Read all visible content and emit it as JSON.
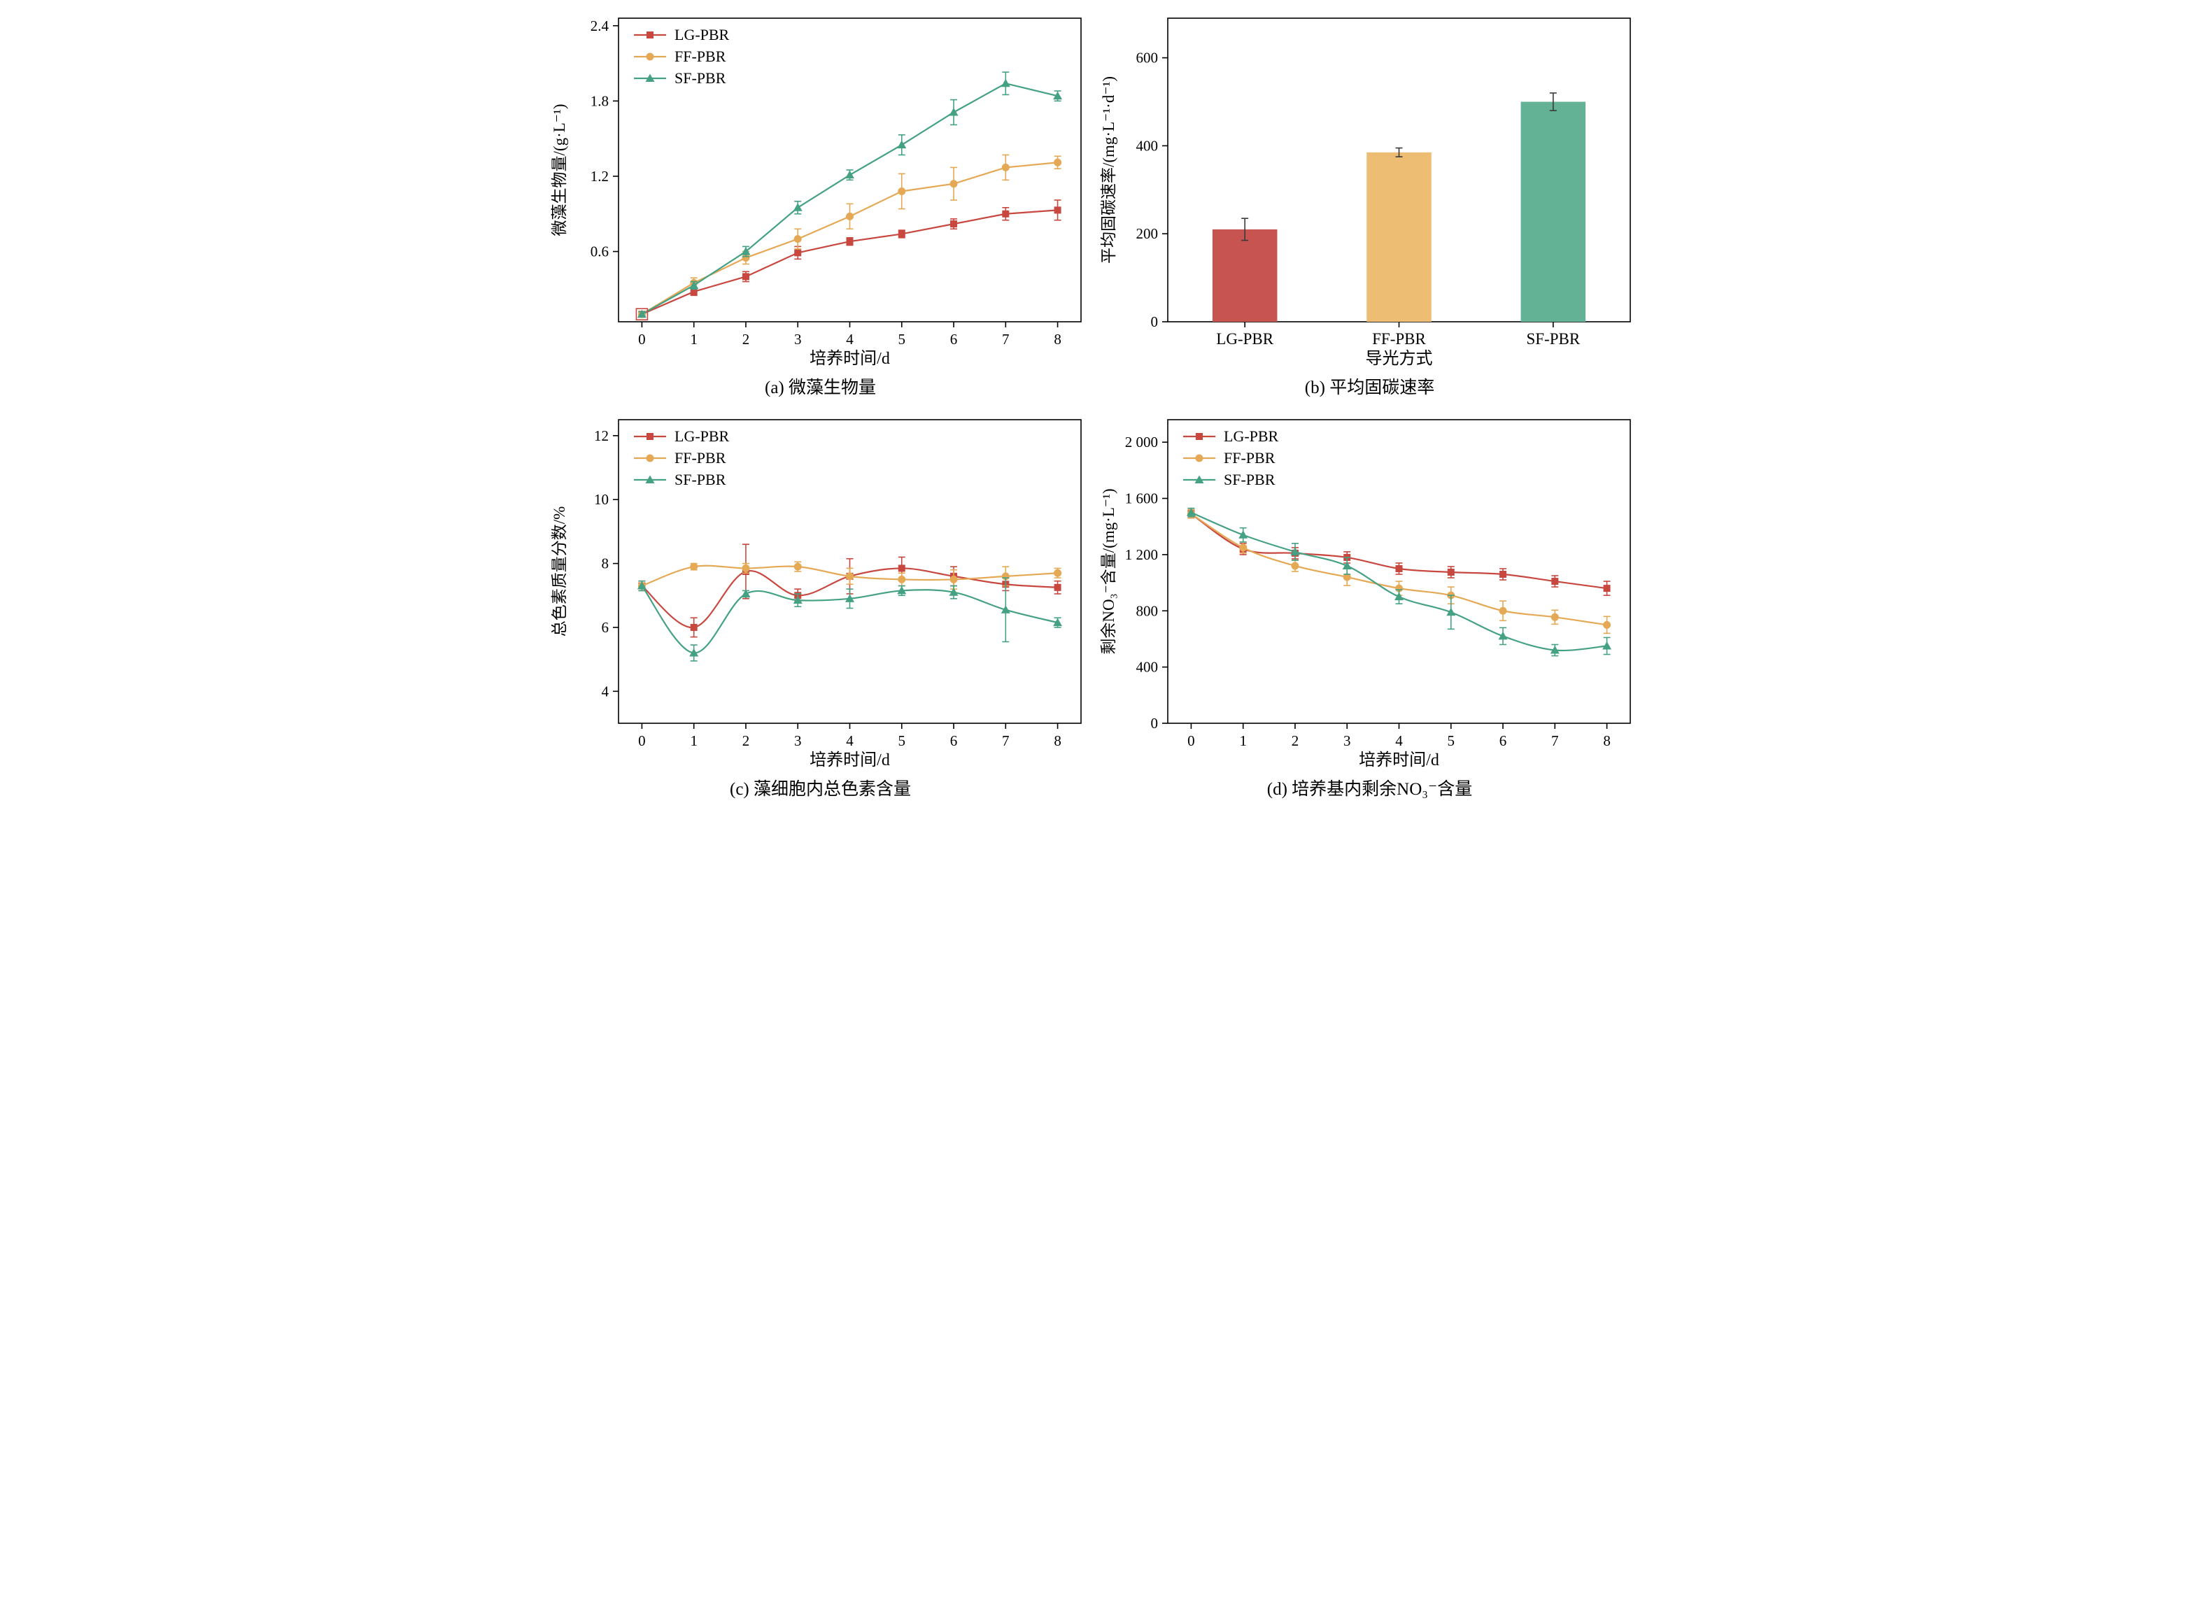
{
  "page": {
    "background": "#ffffff"
  },
  "chart_data": [
    {
      "id": "a",
      "type": "line",
      "smooth": false,
      "caption": "(a) 微藻生物量",
      "xlabel": "培养时间/d",
      "ylabel": "微藻生物量/(g·L⁻¹)",
      "x": [
        0,
        1,
        2,
        3,
        4,
        5,
        6,
        7,
        8
      ],
      "xtick_labels": [
        "0",
        "1",
        "2",
        "3",
        "4",
        "5",
        "6",
        "7",
        "8"
      ],
      "yticks": [
        0.6,
        1.2,
        1.8,
        2.4
      ],
      "ytick_labels": [
        "0.6",
        "1.2",
        "1.8",
        "2.4"
      ],
      "xlim": [
        -0.45,
        8.45
      ],
      "ylim": [
        0.04,
        2.46
      ],
      "legend_pos": "top-left",
      "annotations": [
        {
          "shape": "open-square",
          "x": 0,
          "y": 0.1,
          "color": "#c8473f",
          "size": 16
        }
      ],
      "series": [
        {
          "name": "LG-PBR",
          "marker": "square",
          "color": "#c8473f",
          "values": [
            0.1,
            0.28,
            0.4,
            0.59,
            0.68,
            0.74,
            0.82,
            0.9,
            0.93
          ],
          "errors": [
            0.02,
            0.03,
            0.04,
            0.05,
            0.03,
            0.03,
            0.04,
            0.05,
            0.08
          ]
        },
        {
          "name": "FF-PBR",
          "marker": "circle",
          "color": "#e5a854",
          "values": [
            0.1,
            0.35,
            0.55,
            0.7,
            0.88,
            1.08,
            1.14,
            1.27,
            1.31
          ],
          "errors": [
            0.02,
            0.04,
            0.05,
            0.08,
            0.1,
            0.14,
            0.13,
            0.1,
            0.05
          ]
        },
        {
          "name": "SF-PBR",
          "marker": "triangle",
          "color": "#45a184",
          "values": [
            0.1,
            0.33,
            0.6,
            0.95,
            1.21,
            1.45,
            1.71,
            1.94,
            1.84
          ],
          "errors": [
            0.02,
            0.03,
            0.04,
            0.05,
            0.04,
            0.08,
            0.1,
            0.09,
            0.04
          ]
        }
      ]
    },
    {
      "id": "b",
      "type": "bar",
      "caption": "(b) 平均固碳速率",
      "xlabel": "导光方式",
      "ylabel": "平均固碳速率/(mg·L⁻¹·d⁻¹)",
      "categories": [
        "LG-PBR",
        "FF-PBR",
        "SF-PBR"
      ],
      "values": [
        210,
        385,
        500
      ],
      "errors": [
        25,
        10,
        20
      ],
      "colors": [
        "#c75450",
        "#edbd73",
        "#63b295"
      ],
      "yticks": [
        0,
        200,
        400,
        600
      ],
      "ytick_labels": [
        "0",
        "200",
        "400",
        "600"
      ],
      "ylim": [
        0,
        690
      ]
    },
    {
      "id": "c",
      "type": "line",
      "smooth": true,
      "caption": "(c) 藻细胞内总色素含量",
      "xlabel": "培养时间/d",
      "ylabel": "总色素质量分数/%",
      "x": [
        0,
        1,
        2,
        3,
        4,
        5,
        6,
        7,
        8
      ],
      "xtick_labels": [
        "0",
        "1",
        "2",
        "3",
        "4",
        "5",
        "6",
        "7",
        "8"
      ],
      "yticks": [
        4,
        6,
        8,
        10,
        12
      ],
      "ytick_labels": [
        "4",
        "6",
        "8",
        "10",
        "12"
      ],
      "xlim": [
        -0.45,
        8.45
      ],
      "ylim": [
        3.0,
        12.5
      ],
      "legend_pos": "top-left",
      "annotations": [],
      "series": [
        {
          "name": "LG-PBR",
          "marker": "square",
          "color": "#c8473f",
          "values": [
            7.3,
            6.0,
            7.75,
            7.0,
            7.6,
            7.85,
            7.6,
            7.35,
            7.25
          ],
          "errors": [
            0.15,
            0.3,
            0.85,
            0.2,
            0.55,
            0.35,
            0.3,
            0.2,
            0.2
          ]
        },
        {
          "name": "FF-PBR",
          "marker": "circle",
          "color": "#e5a854",
          "values": [
            7.3,
            7.9,
            7.85,
            7.9,
            7.6,
            7.5,
            7.5,
            7.6,
            7.7
          ],
          "errors": [
            0.15,
            0.1,
            0.15,
            0.15,
            0.25,
            0.2,
            0.3,
            0.3,
            0.15
          ]
        },
        {
          "name": "SF-PBR",
          "marker": "triangle",
          "color": "#45a184",
          "values": [
            7.3,
            5.2,
            7.05,
            6.85,
            6.9,
            7.15,
            7.1,
            6.55,
            6.15
          ],
          "errors": [
            0.15,
            0.25,
            0.1,
            0.2,
            0.3,
            0.15,
            0.2,
            1.0,
            0.15
          ]
        }
      ]
    },
    {
      "id": "d",
      "type": "line",
      "smooth": true,
      "caption": "(d) 培养基内剩余NO₃⁻含量",
      "xlabel": "培养时间/d",
      "ylabel": "剩余NO₃⁻含量/(mg·L⁻¹)",
      "x": [
        0,
        1,
        2,
        3,
        4,
        5,
        6,
        7,
        8
      ],
      "xtick_labels": [
        "0",
        "1",
        "2",
        "3",
        "4",
        "5",
        "6",
        "7",
        "8"
      ],
      "yticks": [
        0,
        400,
        800,
        1200,
        1600,
        2000
      ],
      "ytick_labels": [
        "0",
        "400",
        "800",
        "1 200",
        "1 600",
        "2 000"
      ],
      "xlim": [
        -0.45,
        8.45
      ],
      "ylim": [
        0,
        2160
      ],
      "legend_pos": "top-left",
      "annotations": [],
      "series": [
        {
          "name": "LG-PBR",
          "marker": "square",
          "color": "#c8473f",
          "values": [
            1490,
            1240,
            1210,
            1180,
            1100,
            1075,
            1060,
            1010,
            960
          ],
          "errors": [
            30,
            40,
            40,
            40,
            40,
            40,
            40,
            40,
            50
          ]
        },
        {
          "name": "FF-PBR",
          "marker": "circle",
          "color": "#e5a854",
          "values": [
            1490,
            1250,
            1120,
            1040,
            960,
            910,
            800,
            755,
            700
          ],
          "errors": [
            30,
            40,
            40,
            60,
            50,
            60,
            70,
            50,
            60
          ]
        },
        {
          "name": "SF-PBR",
          "marker": "triangle",
          "color": "#45a184",
          "values": [
            1500,
            1340,
            1220,
            1120,
            900,
            790,
            620,
            520,
            550
          ],
          "errors": [
            30,
            50,
            60,
            60,
            50,
            120,
            60,
            40,
            60
          ]
        }
      ]
    }
  ]
}
